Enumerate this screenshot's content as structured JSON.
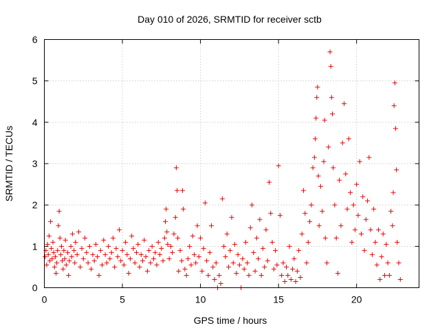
{
  "chart_data": {
    "type": "scatter",
    "title": "Day 010 of 2026, SRMTID for receiver sctb",
    "xlabel": "GPS time / hours",
    "ylabel": "SRMTID / TECUs",
    "xlim": [
      0,
      24
    ],
    "ylim": [
      0,
      6
    ],
    "xticks": [
      0,
      5,
      10,
      15,
      20
    ],
    "yticks": [
      0,
      1,
      2,
      3,
      4,
      5,
      6
    ],
    "grid": true,
    "marker": "plus",
    "color": "#e60000",
    "series": [
      {
        "name": "SRMTID",
        "points": [
          [
            0.05,
            0.75
          ],
          [
            0.1,
            0.9
          ],
          [
            0.15,
            0.55
          ],
          [
            0.2,
            1.05
          ],
          [
            0.25,
            0.8
          ],
          [
            0.3,
            1.25
          ],
          [
            0.35,
            0.65
          ],
          [
            0.4,
            1.6
          ],
          [
            0.45,
            0.95
          ],
          [
            0.5,
            0.7
          ],
          [
            0.55,
            1.1
          ],
          [
            0.6,
            0.85
          ],
          [
            0.65,
            0.5
          ],
          [
            0.7,
            0.75
          ],
          [
            0.75,
            0.35
          ],
          [
            0.8,
            0.6
          ],
          [
            0.85,
            0.9
          ],
          [
            0.9,
            1.5
          ],
          [
            0.95,
            1.85
          ],
          [
            1.0,
            1.2
          ],
          [
            1.05,
            0.8
          ],
          [
            1.1,
            1.0
          ],
          [
            1.15,
            0.65
          ],
          [
            1.2,
            0.45
          ],
          [
            1.25,
            0.9
          ],
          [
            1.3,
            0.7
          ],
          [
            1.35,
            1.15
          ],
          [
            1.4,
            0.55
          ],
          [
            1.5,
            0.85
          ],
          [
            1.55,
            0.3
          ],
          [
            1.6,
            0.65
          ],
          [
            1.7,
            1.0
          ],
          [
            1.75,
            0.75
          ],
          [
            1.8,
            1.3
          ],
          [
            1.9,
            0.9
          ],
          [
            1.95,
            0.6
          ],
          [
            2.0,
            1.1
          ],
          [
            2.1,
            0.8
          ],
          [
            2.2,
            1.35
          ],
          [
            2.3,
            0.5
          ],
          [
            2.4,
            0.95
          ],
          [
            2.5,
            0.7
          ],
          [
            2.6,
            1.2
          ],
          [
            2.7,
            0.85
          ],
          [
            2.8,
            0.6
          ],
          [
            2.9,
            1.0
          ],
          [
            3.0,
            0.45
          ],
          [
            3.1,
            0.8
          ],
          [
            3.2,
            0.65
          ],
          [
            3.3,
            1.05
          ],
          [
            3.4,
            0.75
          ],
          [
            3.5,
            0.3
          ],
          [
            3.6,
            0.9
          ],
          [
            3.7,
            0.55
          ],
          [
            3.8,
            1.15
          ],
          [
            3.9,
            0.8
          ],
          [
            4.0,
            0.6
          ],
          [
            4.1,
            1.0
          ],
          [
            4.2,
            0.7
          ],
          [
            4.3,
            0.85
          ],
          [
            4.4,
            1.2
          ],
          [
            4.5,
            0.5
          ],
          [
            4.6,
            0.95
          ],
          [
            4.7,
            0.75
          ],
          [
            4.8,
            1.4
          ],
          [
            4.9,
            0.65
          ],
          [
            5.0,
            0.9
          ],
          [
            5.1,
            0.55
          ],
          [
            5.2,
            1.1
          ],
          [
            5.3,
            0.8
          ],
          [
            5.4,
            0.35
          ],
          [
            5.5,
            0.7
          ],
          [
            5.6,
            1.25
          ],
          [
            5.7,
            0.95
          ],
          [
            5.8,
            0.6
          ],
          [
            5.9,
            0.85
          ],
          [
            6.0,
            1.05
          ],
          [
            6.1,
            0.5
          ],
          [
            6.2,
            0.8
          ],
          [
            6.3,
            0.65
          ],
          [
            6.4,
            1.15
          ],
          [
            6.5,
            0.75
          ],
          [
            6.6,
            0.4
          ],
          [
            6.7,
            0.9
          ],
          [
            6.8,
            0.6
          ],
          [
            6.9,
            1.0
          ],
          [
            7.0,
            0.7
          ],
          [
            7.1,
            0.85
          ],
          [
            7.2,
            0.55
          ],
          [
            7.3,
            1.1
          ],
          [
            7.4,
            0.8
          ],
          [
            7.5,
            0.95
          ],
          [
            7.6,
            0.65
          ],
          [
            7.7,
            1.2
          ],
          [
            7.75,
            1.6
          ],
          [
            7.8,
            1.9
          ],
          [
            7.85,
            1.35
          ],
          [
            7.9,
            1.05
          ],
          [
            8.0,
            0.7
          ],
          [
            8.1,
            1.0
          ],
          [
            8.2,
            0.85
          ],
          [
            8.3,
            1.3
          ],
          [
            8.4,
            1.7
          ],
          [
            8.45,
            2.9
          ],
          [
            8.5,
            2.35
          ],
          [
            8.55,
            1.2
          ],
          [
            8.6,
            0.4
          ],
          [
            8.7,
            0.9
          ],
          [
            8.8,
            0.65
          ],
          [
            8.85,
            2.35
          ],
          [
            8.9,
            1.9
          ],
          [
            9.0,
            0.45
          ],
          [
            9.1,
            0.3
          ],
          [
            9.2,
            0.7
          ],
          [
            9.3,
            1.0
          ],
          [
            9.4,
            0.55
          ],
          [
            9.5,
            1.25
          ],
          [
            9.6,
            0.8
          ],
          [
            9.7,
            0.6
          ],
          [
            9.8,
            1.5
          ],
          [
            9.9,
            0.75
          ],
          [
            10.0,
            1.2
          ],
          [
            10.1,
            0.4
          ],
          [
            10.2,
            0.95
          ],
          [
            10.3,
            2.05
          ],
          [
            10.4,
            0.65
          ],
          [
            10.5,
            0.3
          ],
          [
            10.6,
            0.85
          ],
          [
            10.7,
            1.5
          ],
          [
            10.8,
            0.5
          ],
          [
            10.9,
            0.2
          ],
          [
            11.0,
            0.6
          ],
          [
            11.1,
            0.0
          ],
          [
            11.2,
            0.3
          ],
          [
            11.3,
            0.1
          ],
          [
            11.4,
            2.15
          ],
          [
            11.5,
            1.0
          ],
          [
            11.6,
            0.75
          ],
          [
            11.7,
            1.3
          ],
          [
            11.8,
            0.5
          ],
          [
            11.9,
            0.9
          ],
          [
            12.0,
            1.7
          ],
          [
            12.1,
            0.6
          ],
          [
            12.2,
            1.05
          ],
          [
            12.3,
            0.35
          ],
          [
            12.4,
            0.8
          ],
          [
            12.5,
            0.55
          ],
          [
            12.6,
            0.0
          ],
          [
            12.7,
            0.7
          ],
          [
            12.8,
            0.45
          ],
          [
            12.9,
            1.1
          ],
          [
            13.0,
            0.6
          ],
          [
            13.1,
            0.3
          ],
          [
            13.2,
            1.45
          ],
          [
            13.3,
            2.0
          ],
          [
            13.4,
            0.85
          ],
          [
            13.5,
            0.4
          ],
          [
            13.6,
            1.2
          ],
          [
            13.7,
            0.7
          ],
          [
            13.8,
            1.65
          ],
          [
            13.9,
            0.3
          ],
          [
            14.0,
            0.95
          ],
          [
            14.1,
            0.5
          ],
          [
            14.2,
            1.4
          ],
          [
            14.3,
            0.65
          ],
          [
            14.4,
            2.55
          ],
          [
            14.5,
            1.8
          ],
          [
            14.6,
            1.1
          ],
          [
            14.7,
            0.45
          ],
          [
            14.8,
            0.9
          ],
          [
            14.9,
            0.55
          ],
          [
            15.0,
            2.95
          ],
          [
            15.1,
            1.75
          ],
          [
            15.2,
            0.3
          ],
          [
            15.3,
            0.6
          ],
          [
            15.4,
            0.15
          ],
          [
            15.5,
            0.5
          ],
          [
            15.6,
            0.3
          ],
          [
            15.7,
            1.0
          ],
          [
            15.8,
            0.2
          ],
          [
            15.9,
            0.45
          ],
          [
            16.0,
            0.7
          ],
          [
            16.1,
            0.15
          ],
          [
            16.2,
            0.4
          ],
          [
            16.3,
            0.9
          ],
          [
            16.4,
            0.25
          ],
          [
            16.5,
            1.3
          ],
          [
            16.6,
            2.35
          ],
          [
            16.7,
            1.8
          ],
          [
            16.8,
            0.6
          ],
          [
            16.9,
            1.1
          ],
          [
            17.0,
            1.6
          ],
          [
            17.1,
            2.0
          ],
          [
            17.2,
            2.9
          ],
          [
            17.3,
            3.15
          ],
          [
            17.35,
            3.6
          ],
          [
            17.4,
            4.1
          ],
          [
            17.45,
            4.6
          ],
          [
            17.5,
            4.85
          ],
          [
            17.55,
            2.7
          ],
          [
            17.6,
            1.5
          ],
          [
            17.7,
            2.45
          ],
          [
            17.8,
            1.85
          ],
          [
            17.9,
            3.05
          ],
          [
            17.95,
            4.05
          ],
          [
            18.0,
            1.2
          ],
          [
            18.1,
            0.6
          ],
          [
            18.2,
            3.4
          ],
          [
            18.3,
            5.7
          ],
          [
            18.35,
            5.35
          ],
          [
            18.4,
            4.6
          ],
          [
            18.45,
            4.2
          ],
          [
            18.5,
            2.9
          ],
          [
            18.6,
            2.0
          ],
          [
            18.7,
            1.2
          ],
          [
            18.8,
            0.35
          ],
          [
            18.9,
            2.6
          ],
          [
            19.0,
            1.5
          ],
          [
            19.1,
            3.5
          ],
          [
            19.2,
            4.45
          ],
          [
            19.3,
            2.75
          ],
          [
            19.4,
            1.9
          ],
          [
            19.5,
            3.6
          ],
          [
            19.6,
            2.3
          ],
          [
            19.7,
            1.1
          ],
          [
            19.8,
            2.0
          ],
          [
            19.9,
            1.4
          ],
          [
            20.0,
            2.5
          ],
          [
            20.1,
            1.75
          ],
          [
            20.2,
            3.05
          ],
          [
            20.3,
            1.3
          ],
          [
            20.4,
            2.2
          ],
          [
            20.5,
            0.9
          ],
          [
            20.6,
            1.65
          ],
          [
            20.7,
            2.1
          ],
          [
            20.8,
            3.15
          ],
          [
            20.9,
            1.4
          ],
          [
            21.0,
            0.8
          ],
          [
            21.1,
            1.9
          ],
          [
            21.2,
            1.1
          ],
          [
            21.3,
            0.55
          ],
          [
            21.4,
            1.4
          ],
          [
            21.5,
            0.2
          ],
          [
            21.6,
            0.75
          ],
          [
            21.7,
            1.3
          ],
          [
            21.8,
            0.3
          ],
          [
            21.9,
            1.05
          ],
          [
            22.0,
            0.6
          ],
          [
            22.1,
            0.3
          ],
          [
            22.2,
            1.85
          ],
          [
            22.3,
            1.5
          ],
          [
            22.35,
            2.3
          ],
          [
            22.4,
            4.4
          ],
          [
            22.45,
            4.95
          ],
          [
            22.5,
            3.85
          ],
          [
            22.55,
            2.85
          ],
          [
            22.6,
            1.1
          ],
          [
            22.7,
            0.6
          ],
          [
            22.8,
            0.2
          ]
        ]
      }
    ]
  }
}
